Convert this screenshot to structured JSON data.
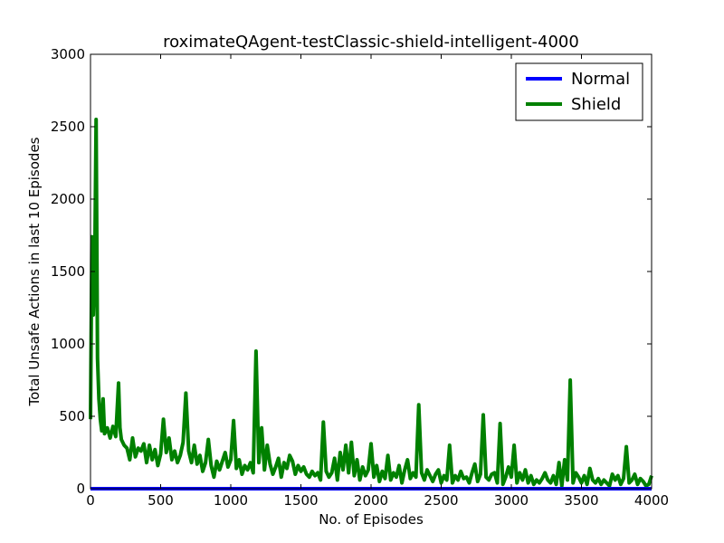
{
  "chart_data": {
    "type": "line",
    "title": "roximateQAgent-testClassic-shield-intelligent-4000",
    "xlabel": "No. of Episodes",
    "ylabel": "Total Unsafe Actions in last 10 Episodes",
    "xlim": [
      0,
      4000
    ],
    "ylim": [
      0,
      3000
    ],
    "xticks": [
      0,
      500,
      1000,
      1500,
      2000,
      2500,
      3000,
      3500,
      4000
    ],
    "yticks": [
      0,
      500,
      1000,
      1500,
      2000,
      2500,
      3000
    ],
    "grid": false,
    "legend_position": "top-right",
    "series": [
      {
        "name": "Normal",
        "color": "#0000ff",
        "x": [
          0,
          4000
        ],
        "y": [
          0,
          0
        ]
      },
      {
        "name": "Shield",
        "color": "#008000",
        "x": [
          0,
          10,
          20,
          30,
          40,
          50,
          60,
          70,
          80,
          90,
          100,
          120,
          140,
          160,
          180,
          200,
          210,
          220,
          240,
          260,
          280,
          300,
          320,
          340,
          360,
          380,
          400,
          420,
          440,
          460,
          480,
          500,
          520,
          540,
          560,
          580,
          600,
          620,
          640,
          660,
          680,
          700,
          720,
          740,
          760,
          780,
          800,
          820,
          840,
          860,
          880,
          900,
          920,
          940,
          960,
          980,
          1000,
          1020,
          1040,
          1060,
          1080,
          1100,
          1120,
          1140,
          1160,
          1180,
          1200,
          1220,
          1240,
          1260,
          1280,
          1300,
          1320,
          1340,
          1360,
          1380,
          1400,
          1420,
          1440,
          1460,
          1480,
          1500,
          1520,
          1540,
          1560,
          1580,
          1600,
          1620,
          1640,
          1660,
          1680,
          1700,
          1720,
          1740,
          1760,
          1780,
          1800,
          1820,
          1840,
          1860,
          1880,
          1900,
          1920,
          1940,
          1960,
          1980,
          2000,
          2020,
          2040,
          2060,
          2080,
          2100,
          2120,
          2140,
          2160,
          2180,
          2200,
          2220,
          2240,
          2260,
          2280,
          2300,
          2320,
          2340,
          2360,
          2380,
          2400,
          2420,
          2440,
          2460,
          2480,
          2500,
          2520,
          2540,
          2560,
          2580,
          2600,
          2620,
          2640,
          2660,
          2680,
          2700,
          2720,
          2740,
          2760,
          2780,
          2800,
          2820,
          2840,
          2860,
          2880,
          2900,
          2920,
          2940,
          2960,
          2980,
          3000,
          3020,
          3040,
          3060,
          3080,
          3100,
          3120,
          3140,
          3160,
          3180,
          3200,
          3220,
          3240,
          3260,
          3280,
          3300,
          3320,
          3340,
          3360,
          3380,
          3400,
          3420,
          3440,
          3460,
          3480,
          3500,
          3520,
          3540,
          3560,
          3580,
          3600,
          3620,
          3640,
          3660,
          3680,
          3700,
          3720,
          3740,
          3760,
          3780,
          3800,
          3820,
          3840,
          3860,
          3880,
          3900,
          3920,
          3940,
          3960,
          3980,
          4000
        ],
        "y": [
          480,
          1740,
          1200,
          1500,
          2550,
          900,
          620,
          480,
          400,
          620,
          380,
          420,
          350,
          430,
          360,
          730,
          420,
          340,
          300,
          280,
          200,
          350,
          220,
          280,
          260,
          310,
          180,
          300,
          200,
          270,
          160,
          240,
          480,
          250,
          350,
          200,
          260,
          180,
          230,
          320,
          660,
          260,
          180,
          300,
          170,
          230,
          120,
          180,
          340,
          160,
          80,
          190,
          130,
          190,
          250,
          150,
          200,
          470,
          140,
          200,
          100,
          160,
          130,
          180,
          110,
          950,
          180,
          420,
          130,
          300,
          170,
          100,
          150,
          210,
          80,
          180,
          140,
          230,
          190,
          100,
          160,
          120,
          150,
          100,
          80,
          120,
          90,
          110,
          60,
          460,
          120,
          80,
          110,
          210,
          60,
          250,
          130,
          300,
          110,
          320,
          90,
          200,
          60,
          150,
          90,
          130,
          310,
          80,
          160,
          50,
          120,
          70,
          230,
          60,
          110,
          80,
          160,
          40,
          130,
          200,
          70,
          110,
          80,
          580,
          110,
          60,
          130,
          90,
          50,
          100,
          130,
          40,
          90,
          60,
          300,
          40,
          90,
          60,
          120,
          70,
          80,
          40,
          110,
          170,
          50,
          100,
          510,
          80,
          60,
          100,
          110,
          40,
          450,
          30,
          80,
          150,
          80,
          300,
          40,
          110,
          60,
          130,
          40,
          90,
          30,
          60,
          40,
          70,
          110,
          60,
          40,
          90,
          30,
          180,
          20,
          200,
          60,
          750,
          40,
          110,
          80,
          40,
          90,
          30,
          140,
          60,
          40,
          70,
          30,
          60,
          40,
          20,
          100,
          60,
          90,
          30,
          70,
          290,
          40,
          60,
          100,
          30,
          70,
          50,
          20,
          30,
          90
        ]
      }
    ]
  }
}
